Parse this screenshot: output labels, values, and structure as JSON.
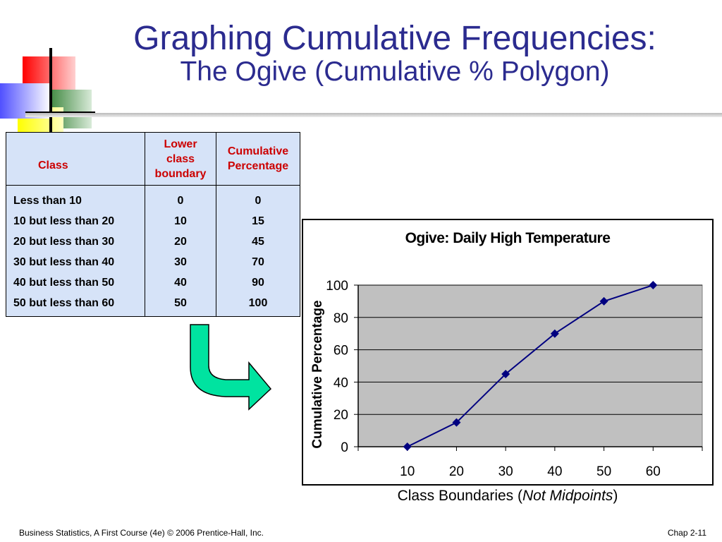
{
  "slide": {
    "title": "Graphing Cumulative Frequencies:",
    "subtitle": "The Ogive (Cumulative % Polygon)",
    "footer_left": "Business Statistics, A First Course (4e) © 2006 Prentice-Hall, Inc.",
    "footer_right": "Chap 2-11",
    "title_color": "#2b2b8f"
  },
  "table": {
    "headers": [
      "Class",
      "Lower class boundary",
      "Cumulative Percentage"
    ],
    "header_lines": [
      [
        "Class"
      ],
      [
        "Lower",
        "class",
        "boundary"
      ],
      [
        "Cumulative",
        "Percentage"
      ]
    ],
    "rows": [
      [
        "Less than 10",
        "0",
        "0"
      ],
      [
        "10 but less than 20",
        "10",
        "15"
      ],
      [
        "20 but less than 30",
        "20",
        "45"
      ],
      [
        "30 but less than 40",
        "30",
        "70"
      ],
      [
        "40 but less than 50",
        "40",
        "90"
      ],
      [
        "50 but less than 60",
        "50",
        "100"
      ]
    ],
    "header_color": "#cc0000",
    "background": "#d6e3f8"
  },
  "arrow": {
    "icon": "curved-arrow-icon",
    "color": "#00e3a0"
  },
  "chart_data": {
    "type": "line",
    "title": "Ogive: Daily High Temperature",
    "xlabel_prefix": "Class Boundaries (",
    "xlabel_italic": "Not Midpoints",
    "xlabel_suffix": ")",
    "ylabel": "Cumulative Percentage",
    "x": [
      10,
      20,
      30,
      40,
      50,
      60
    ],
    "x_ticks": [
      "10",
      "20",
      "30",
      "40",
      "50",
      "60"
    ],
    "y_ticks": [
      "0",
      "20",
      "40",
      "60",
      "80",
      "100"
    ],
    "series": [
      {
        "values": [
          0,
          15,
          45,
          70,
          90,
          100
        ]
      }
    ],
    "ylim": [
      0,
      100
    ],
    "grid": true,
    "marker": "diamond",
    "line_color": "#000080",
    "plot_background": "#c0c0c0"
  }
}
